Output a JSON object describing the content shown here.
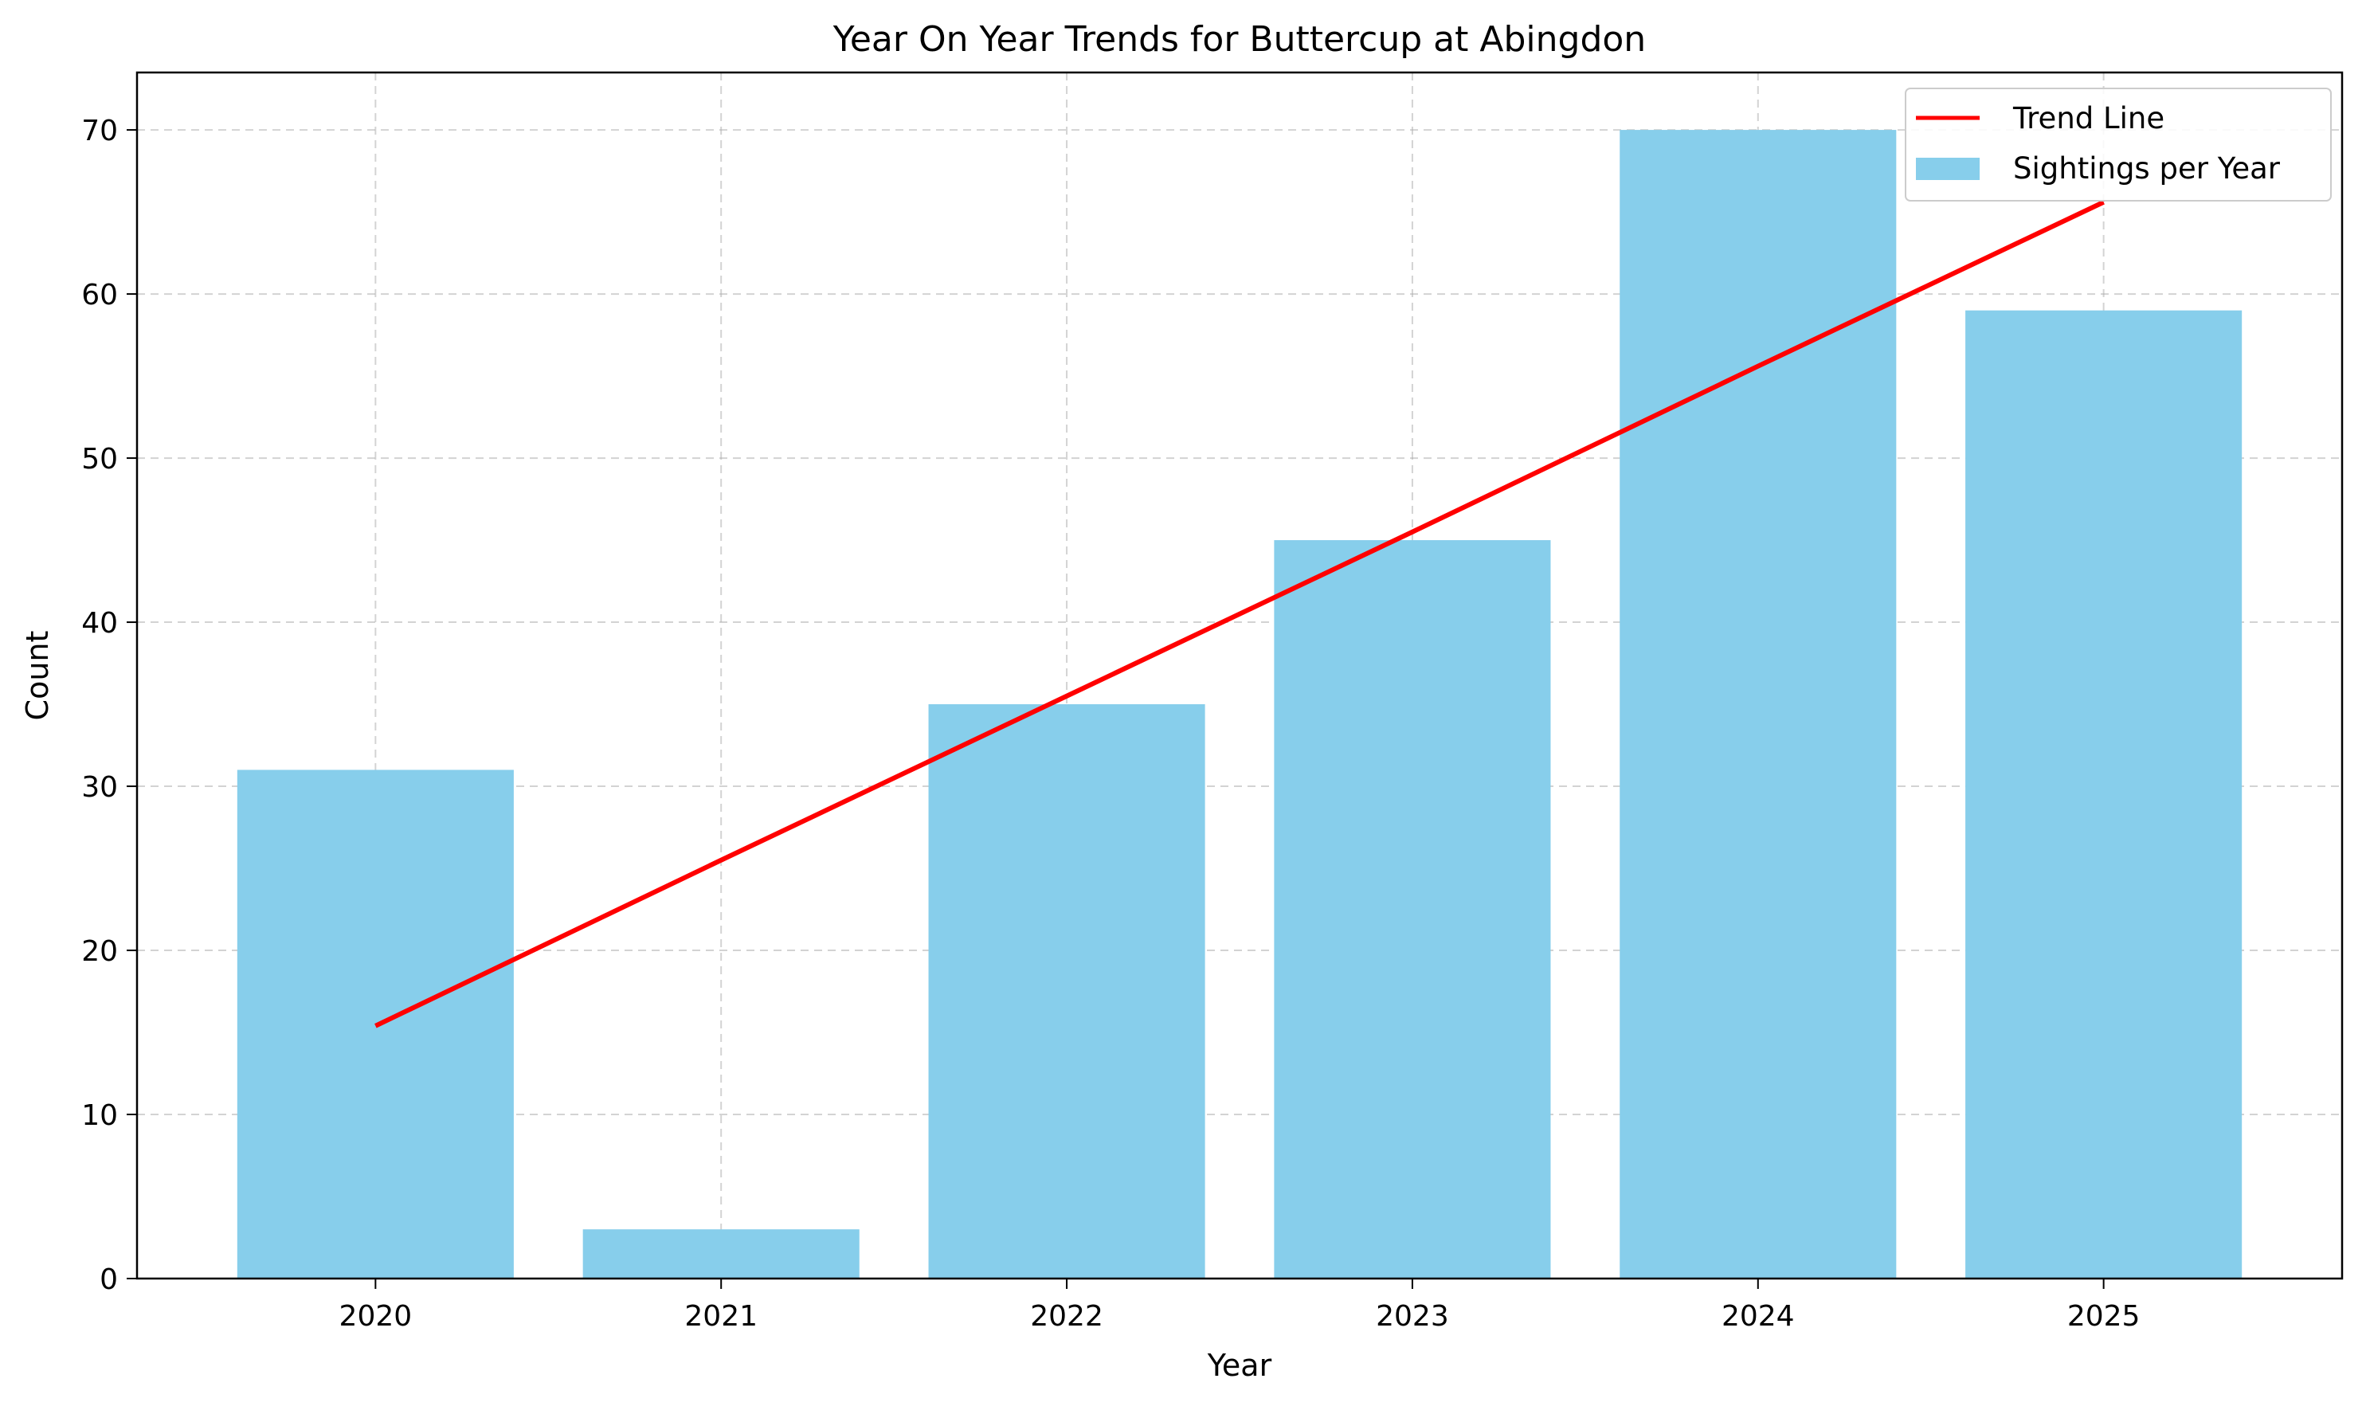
{
  "chart_data": {
    "type": "bar",
    "title": "Year On Year Trends for Buttercup at Abingdon",
    "xlabel": "Year",
    "ylabel": "Count",
    "categories": [
      "2020",
      "2021",
      "2022",
      "2023",
      "2024",
      "2025"
    ],
    "ylim": [
      0,
      73.5
    ],
    "yticks": [
      0,
      10,
      20,
      30,
      40,
      50,
      60,
      70
    ],
    "grid": true,
    "legend_position": "top-right",
    "series": [
      {
        "name": "Sightings per Year",
        "kind": "bar",
        "color": "#87CEEB",
        "values": [
          31,
          3,
          35,
          45,
          70,
          59
        ]
      },
      {
        "name": "Trend Line",
        "kind": "line",
        "color": "#FF0000",
        "values": [
          15.4,
          25.5,
          35.5,
          45.5,
          55.6,
          65.6
        ]
      }
    ]
  }
}
